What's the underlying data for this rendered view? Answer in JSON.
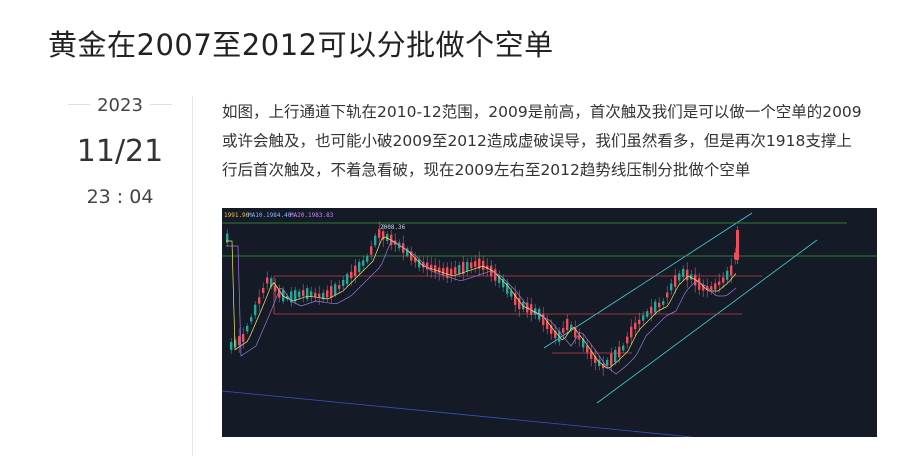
{
  "post": {
    "title": "黄金在2007至2012可以分批做个空单",
    "date": {
      "year": "2023",
      "month_day": "11/21",
      "time": "23 : 04"
    },
    "body_lines": [
      "如图，上行通道下轨在2010-12范围，2009是前高，首次触及我们是可以做一个空单的2009",
      "或许会触及，也可能小破2009至2012造成虚破误导，我们虽然看多，但是再次1918支撑上",
      "行后首次触及，不着急看破，现在2009左右至2012趋势线压制分批做个空单"
    ]
  },
  "chart": {
    "legend": {
      "price": "1991.90",
      "ma10": "MA10.1984.40",
      "ma20": "MA20.1983.83"
    },
    "high_label": "2008.36",
    "colors": {
      "background": "#141a26",
      "up": "#ef4f5c",
      "down": "#26a69a",
      "ma1": "#f2e66b",
      "ma2": "#9b7bd4",
      "channel": "#3fd1d8",
      "hline": "#c2414e",
      "gline": "#3f9c3a"
    }
  }
}
